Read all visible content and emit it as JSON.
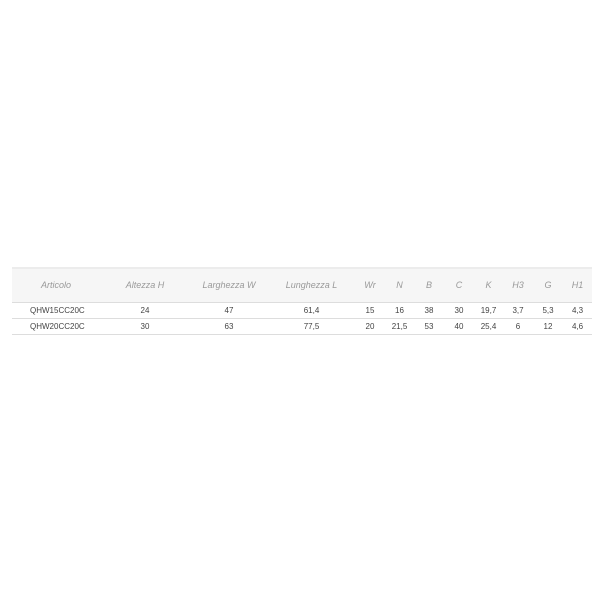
{
  "table": {
    "headers": [
      "Articolo",
      "Altezza H",
      "Larghezza W",
      "Lunghezza L",
      "Wr",
      "N",
      "B",
      "C",
      "K",
      "H3",
      "G",
      "H1"
    ],
    "rows": [
      [
        "QHW15CC20C",
        "24",
        "47",
        "61,4",
        "15",
        "16",
        "38",
        "30",
        "19,7",
        "3,7",
        "5,3",
        "4,3"
      ],
      [
        "QHW20CC20C",
        "30",
        "63",
        "77,5",
        "20",
        "21,5",
        "53",
        "40",
        "25,4",
        "6",
        "12",
        "4,6"
      ]
    ]
  }
}
